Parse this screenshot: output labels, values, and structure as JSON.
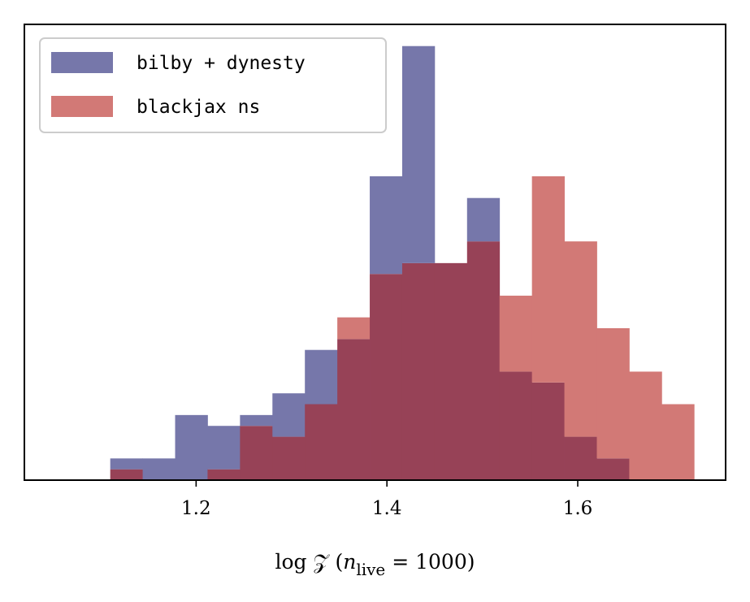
{
  "chart_data": {
    "type": "histogram",
    "title": "",
    "xlabel": {
      "prefix": "log 𝒵 (",
      "n": "n",
      "sub": "live",
      "suffix": " = 1000)"
    },
    "ylabel": "",
    "xlim": [
      1.02,
      1.755
    ],
    "ylim": [
      0,
      21
    ],
    "xticks": [
      {
        "value": 1.2,
        "label": "1.2"
      },
      {
        "value": 1.4,
        "label": "1.4"
      },
      {
        "value": 1.6,
        "label": "1.6"
      }
    ],
    "yticks_visible": false,
    "grid": false,
    "legend_position": "top-left",
    "overlap_color": "#974257",
    "series": [
      {
        "name": "bilby + dynesty",
        "color": "#7677aa",
        "bins": [
          {
            "x0": 1.11,
            "x1": 1.144,
            "count": 1
          },
          {
            "x0": 1.144,
            "x1": 1.178,
            "count": 1
          },
          {
            "x0": 1.178,
            "x1": 1.212,
            "count": 3
          },
          {
            "x0": 1.212,
            "x1": 1.246,
            "count": 2.5
          },
          {
            "x0": 1.246,
            "x1": 1.28,
            "count": 3
          },
          {
            "x0": 1.28,
            "x1": 1.314,
            "count": 4
          },
          {
            "x0": 1.314,
            "x1": 1.348,
            "count": 6
          },
          {
            "x0": 1.348,
            "x1": 1.382,
            "count": 6.5
          },
          {
            "x0": 1.382,
            "x1": 1.416,
            "count": 14
          },
          {
            "x0": 1.416,
            "x1": 1.45,
            "count": 20
          },
          {
            "x0": 1.45,
            "x1": 1.484,
            "count": 10
          },
          {
            "x0": 1.484,
            "x1": 1.518,
            "count": 13
          },
          {
            "x0": 1.518,
            "x1": 1.552,
            "count": 5
          },
          {
            "x0": 1.552,
            "x1": 1.586,
            "count": 4.5
          },
          {
            "x0": 1.586,
            "x1": 1.62,
            "count": 2
          },
          {
            "x0": 1.62,
            "x1": 1.654,
            "count": 1
          }
        ]
      },
      {
        "name": "blackjax ns",
        "color": "#d27976",
        "bins": [
          {
            "x0": 1.11,
            "x1": 1.144,
            "count": 0.5
          },
          {
            "x0": 1.144,
            "x1": 1.178,
            "count": 0
          },
          {
            "x0": 1.178,
            "x1": 1.212,
            "count": 0
          },
          {
            "x0": 1.212,
            "x1": 1.246,
            "count": 0.5
          },
          {
            "x0": 1.246,
            "x1": 1.28,
            "count": 2.5
          },
          {
            "x0": 1.28,
            "x1": 1.314,
            "count": 2
          },
          {
            "x0": 1.314,
            "x1": 1.348,
            "count": 3.5
          },
          {
            "x0": 1.348,
            "x1": 1.382,
            "count": 7.5
          },
          {
            "x0": 1.382,
            "x1": 1.416,
            "count": 9.5
          },
          {
            "x0": 1.416,
            "x1": 1.45,
            "count": 10
          },
          {
            "x0": 1.45,
            "x1": 1.484,
            "count": 10
          },
          {
            "x0": 1.484,
            "x1": 1.518,
            "count": 11
          },
          {
            "x0": 1.518,
            "x1": 1.552,
            "count": 8.5
          },
          {
            "x0": 1.552,
            "x1": 1.586,
            "count": 14
          },
          {
            "x0": 1.586,
            "x1": 1.62,
            "count": 11
          },
          {
            "x0": 1.62,
            "x1": 1.654,
            "count": 7
          },
          {
            "x0": 1.654,
            "x1": 1.688,
            "count": 5
          },
          {
            "x0": 1.688,
            "x1": 1.722,
            "count": 3.5
          }
        ]
      }
    ]
  }
}
